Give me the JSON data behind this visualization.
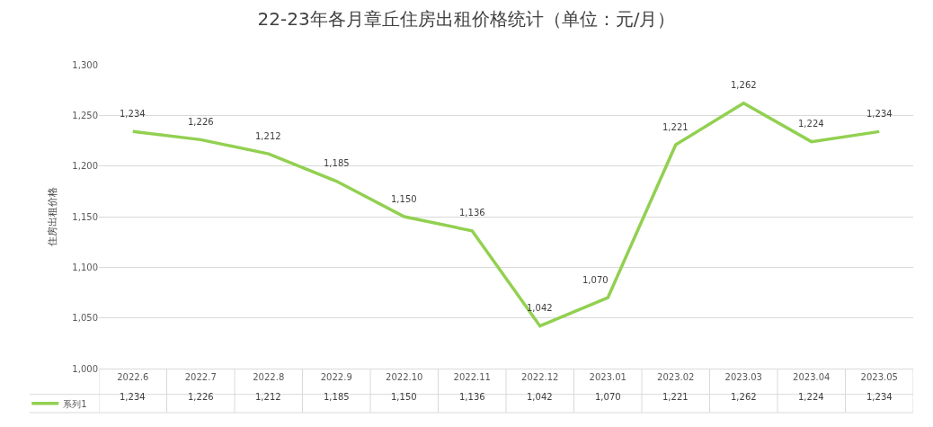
{
  "chart_data": {
    "type": "line",
    "title": "22-23年各月章丘住房出租价格统计（单位：元/月）",
    "ylabel": "住房出租价格",
    "categories": [
      "2022.6",
      "2022.7",
      "2022.8",
      "2022.9",
      "2022.10",
      "2022.11",
      "2022.12",
      "2023.01",
      "2023.02",
      "2023.03",
      "2023.04",
      "2023.05"
    ],
    "series": [
      {
        "name": "系列1",
        "color": "#92d050",
        "values": [
          1234,
          1226,
          1212,
          1185,
          1150,
          1136,
          1042,
          1070,
          1221,
          1262,
          1224,
          1234
        ],
        "value_labels": [
          "1,234",
          "1,226",
          "1,212",
          "1,185",
          "1,150",
          "1,136",
          "1,042",
          "1,070",
          "1,221",
          "1,262",
          "1,224",
          "1,234"
        ]
      }
    ],
    "ylim": [
      1000,
      1300
    ],
    "yticks": [
      {
        "value": 1000,
        "label": "1,000"
      },
      {
        "value": 1050,
        "label": "1,050"
      },
      {
        "value": 1100,
        "label": "1,100"
      },
      {
        "value": 1150,
        "label": "1,150"
      },
      {
        "value": 1200,
        "label": "1,200"
      },
      {
        "value": 1250,
        "label": "1,250"
      },
      {
        "value": 1300,
        "label": "1,300"
      }
    ],
    "grid": "y",
    "legend": "bottom",
    "marker": "none",
    "line_style": "solid"
  }
}
